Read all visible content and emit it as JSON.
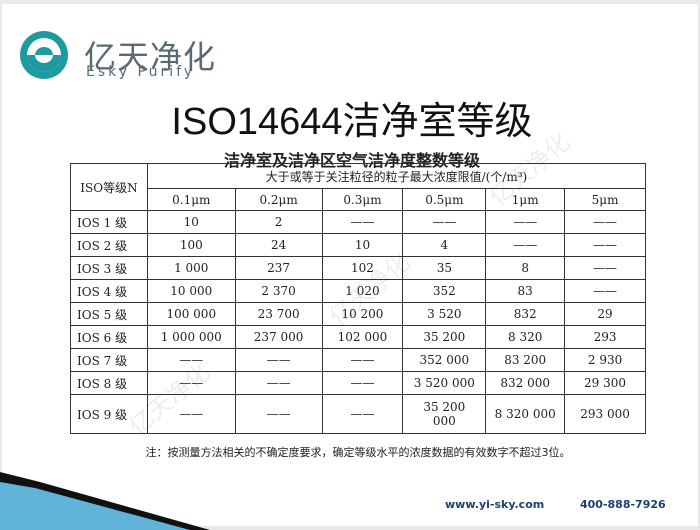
{
  "brand": {
    "name_cn": "亿天净化",
    "name_en": "Esky Purify",
    "color": "#1f9aa0"
  },
  "title": "ISO14644洁净室等级",
  "subtitle": "洁净室及洁净区空气洁净度整数等级",
  "table": {
    "grade_header": "ISO等级N",
    "group_header": "大于或等于关注粒径的粒子最大浓度限值/(个/m³)",
    "sizes": [
      "0.1μm",
      "0.2μm",
      "0.3μm",
      "0.5μm",
      "1μm",
      "5μm"
    ],
    "rows": [
      {
        "grade": "IOS 1 级",
        "values": [
          "10",
          "2",
          "——",
          "——",
          "——",
          "——"
        ]
      },
      {
        "grade": "IOS 2 级",
        "values": [
          "100",
          "24",
          "10",
          "4",
          "——",
          "——"
        ]
      },
      {
        "grade": "IOS 3 级",
        "values": [
          "1 000",
          "237",
          "102",
          "35",
          "8",
          "——"
        ]
      },
      {
        "grade": "IOS 4 级",
        "values": [
          "10 000",
          "2 370",
          "1 020",
          "352",
          "83",
          "——"
        ]
      },
      {
        "grade": "IOS 5 级",
        "values": [
          "100 000",
          "23 700",
          "10 200",
          "3 520",
          "832",
          "29"
        ]
      },
      {
        "grade": "IOS 6 级",
        "values": [
          "1 000 000",
          "237 000",
          "102 000",
          "35 200",
          "8 320",
          "293"
        ]
      },
      {
        "grade": "IOS 7 级",
        "values": [
          "——",
          "——",
          "——",
          "352 000",
          "83 200",
          "2 930"
        ]
      },
      {
        "grade": "IOS 8 级",
        "values": [
          "——",
          "——",
          "——",
          "3 520 000",
          "832 000",
          "29 300"
        ]
      },
      {
        "grade": "IOS 9 级",
        "values": [
          "——",
          "——",
          "——",
          "35 200 000",
          "8 320 000",
          "293 000"
        ]
      }
    ],
    "note": "注：按测量方法相关的不确定度要求，确定等级水平的浓度数据的有效数字不超过3位。"
  },
  "footer": {
    "url": "www.yi-sky.com",
    "phone": "400-888-7926"
  }
}
